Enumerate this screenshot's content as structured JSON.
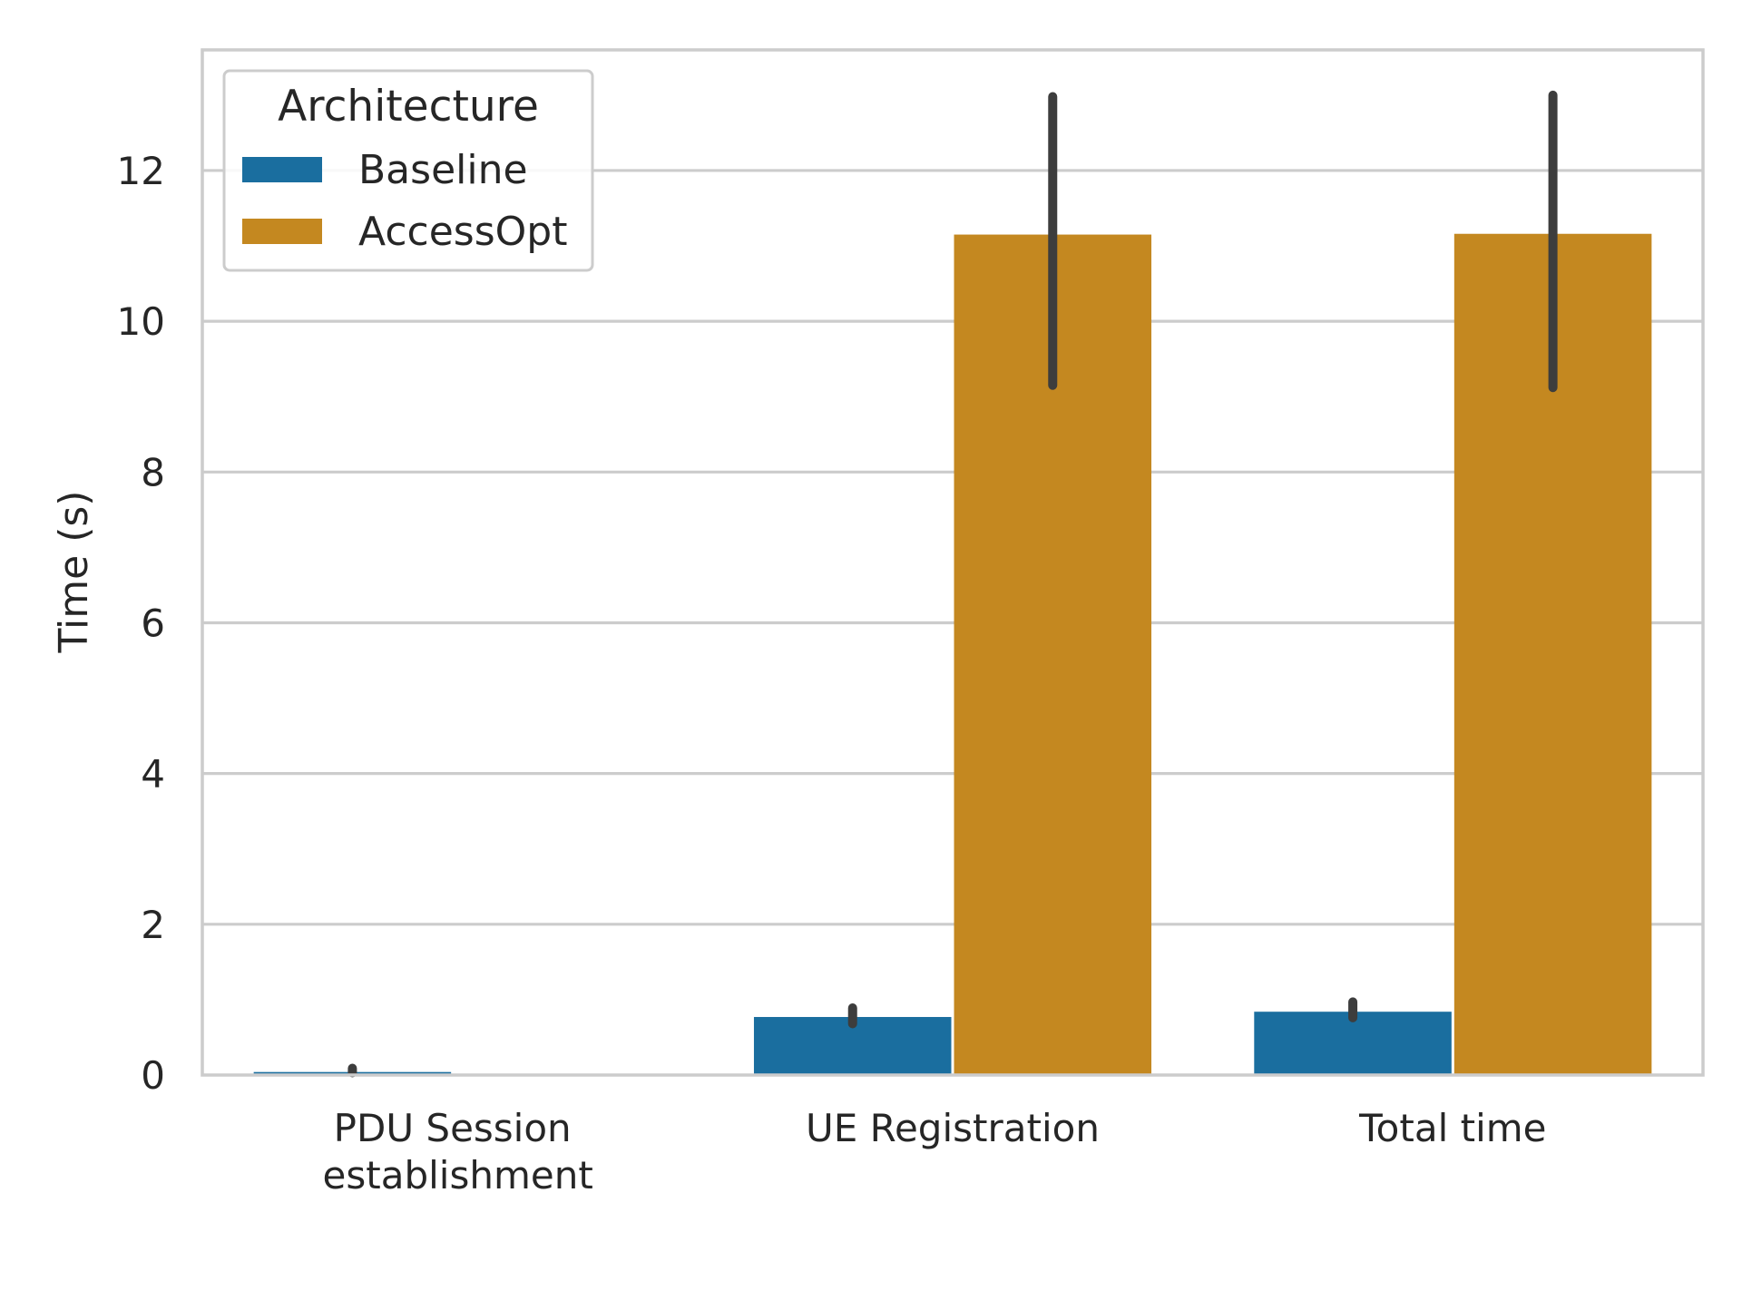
{
  "chart_data": {
    "type": "bar",
    "title": "",
    "xlabel": "",
    "ylabel": "Time (s)",
    "ylim": [
      0,
      13.6
    ],
    "yticks": [
      0,
      2,
      4,
      6,
      8,
      10,
      12
    ],
    "grid": "horizontal",
    "legend": {
      "title": "Architecture",
      "placement": "top-left"
    },
    "categories": [
      [
        "PDU Session",
        "establishment"
      ],
      [
        "UE Registration"
      ],
      [
        "Total time"
      ]
    ],
    "series": [
      {
        "name": "Baseline",
        "color": "#1a6e9f",
        "values": [
          0.04,
          0.77,
          0.84
        ],
        "error_low": [
          0.03,
          0.68,
          0.76
        ],
        "error_high": [
          0.09,
          0.89,
          0.97
        ]
      },
      {
        "name": "AccessOpt",
        "color": "#c48820",
        "values": [
          0.0,
          11.15,
          11.16
        ],
        "error_low": [
          0.0,
          9.15,
          9.12
        ],
        "error_high": [
          0.0,
          12.98,
          13.0
        ]
      }
    ]
  }
}
